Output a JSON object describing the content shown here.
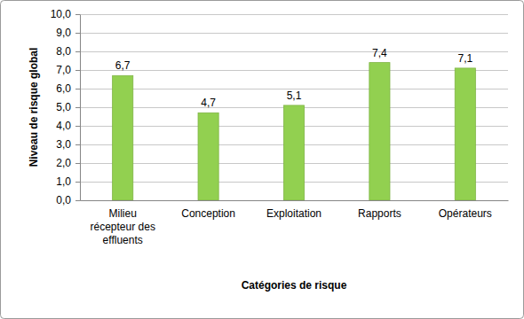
{
  "chart_data": {
    "type": "bar",
    "x_label": "Catégories de risque",
    "y_label": "Niveau de risque global",
    "categories": [
      "Milieu récepteur des effluents",
      "Conception",
      "Exploitation",
      "Rapports",
      "Opérateurs"
    ],
    "values": [
      6.7,
      4.7,
      5.1,
      7.4,
      7.1
    ],
    "value_labels": [
      "6,7",
      "4,7",
      "5,1",
      "7,4",
      "7,1"
    ],
    "color": "#92d050",
    "ylim": [
      0,
      10
    ],
    "yticks": [
      {
        "value": 0,
        "label": "0,0"
      },
      {
        "value": 1,
        "label": "1,0"
      },
      {
        "value": 2,
        "label": "2,0"
      },
      {
        "value": 3,
        "label": "3,0"
      },
      {
        "value": 4,
        "label": "4,0"
      },
      {
        "value": 5,
        "label": "5,0"
      },
      {
        "value": 6,
        "label": "6,0"
      },
      {
        "value": 7,
        "label": "7,0"
      },
      {
        "value": 8,
        "label": "8,0"
      },
      {
        "value": 9,
        "label": "9,0"
      },
      {
        "value": 10,
        "label": "10,0"
      }
    ],
    "grid": true,
    "data_labels": true
  }
}
